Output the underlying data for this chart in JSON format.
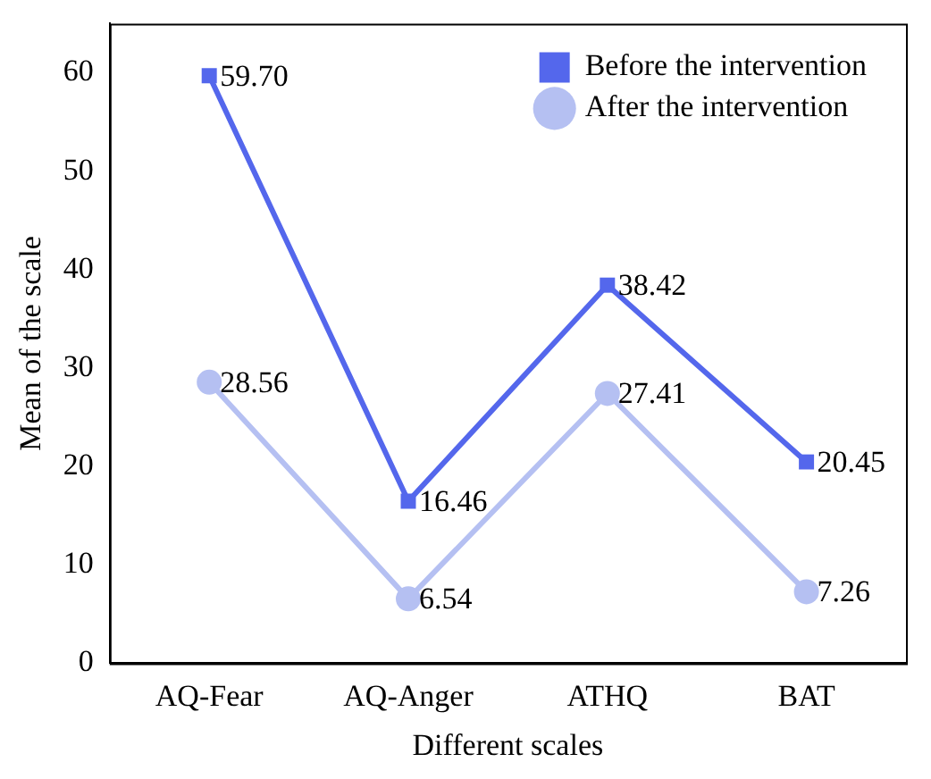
{
  "chart_data": {
    "type": "line",
    "xlabel": "Different scales",
    "ylabel": "Mean of the scale",
    "categories": [
      "AQ-Fear",
      "AQ-Anger",
      "ATHQ",
      "BAT"
    ],
    "series": [
      {
        "name": "Before the intervention",
        "color": "#5467ec",
        "marker": "square",
        "values": [
          59.7,
          16.46,
          38.42,
          20.45
        ],
        "value_labels": [
          "59.70",
          "16.46",
          "38.42",
          "20.45"
        ]
      },
      {
        "name": "After the intervention",
        "color": "#b5c0f2",
        "marker": "circle",
        "values": [
          28.56,
          6.54,
          27.41,
          7.26
        ],
        "value_labels": [
          "28.56",
          "6.54",
          "27.41",
          "7.26"
        ]
      }
    ],
    "ylim": [
      0,
      65
    ],
    "yticks": [
      0,
      10,
      20,
      30,
      40,
      50,
      60
    ],
    "grid": false,
    "legend": "top right",
    "line_style": "solid"
  }
}
